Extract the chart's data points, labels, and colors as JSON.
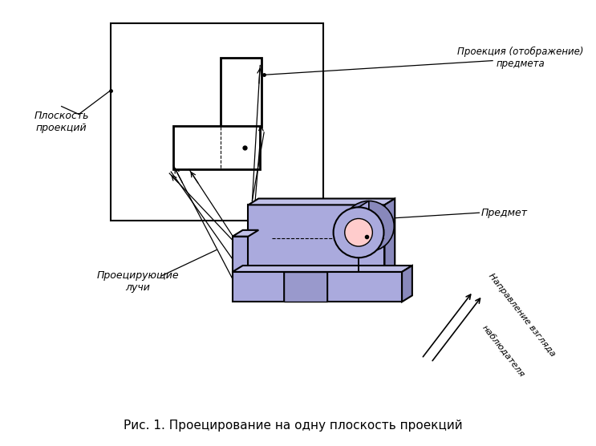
{
  "title": "Рис. 1. Проецирование на одну плоскость проекций",
  "background_color": "#ffffff",
  "label_projection_plane": "Плоскость\nпроекций",
  "label_projection": "Проекция (отображение)\nпредмета",
  "label_object": "Предмет",
  "label_rays": "Проецирующие\nлучи",
  "label_direction_line1": "Направление взгляда",
  "label_direction_line2": "наблюдателя",
  "obj_face_color": "#aaaadd",
  "obj_top_color": "#c0c0e8",
  "obj_side_color": "#8888bb",
  "obj_edge": "#000000",
  "plane_fill": "#ffffff",
  "plane_edge": "#000000",
  "cyl_face": "#aaaadd",
  "cyl_ellipse_outer": "#aaaadd",
  "cyl_ellipse_inner": "#ffcccc",
  "ray_color": "#000000"
}
